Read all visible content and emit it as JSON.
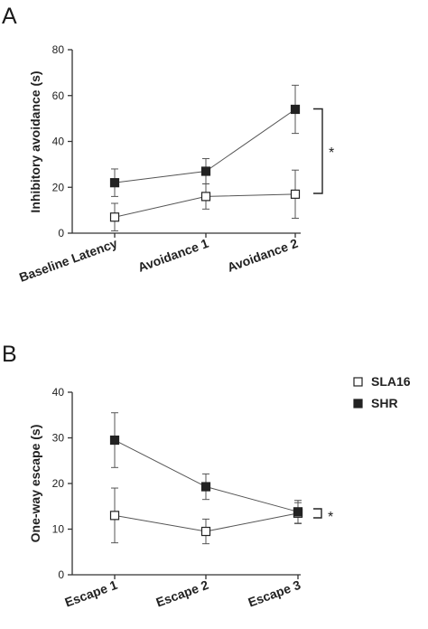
{
  "legend": {
    "items": [
      {
        "label": "SLA16",
        "marker": "open-square",
        "color": "#ffffff"
      },
      {
        "label": "SHR",
        "marker": "filled-square",
        "color": "#222222"
      }
    ]
  },
  "chart_data": [
    {
      "panel": "A",
      "type": "line",
      "categories": [
        "Baseline Latency",
        "Avoidance 1",
        "Avoidance 2"
      ],
      "ylabel": "Inhibitory  avoidance (s)",
      "ylim": [
        0,
        80
      ],
      "yticks": [
        0,
        20,
        40,
        60,
        80
      ],
      "grid": false,
      "significance": "*",
      "series": [
        {
          "name": "SLA16",
          "marker": "open-square",
          "values": [
            7,
            16,
            17
          ],
          "err": [
            6,
            5.5,
            10.5
          ]
        },
        {
          "name": "SHR",
          "marker": "filled-square",
          "values": [
            22,
            27,
            54
          ],
          "err": [
            6,
            5.5,
            10.5
          ]
        }
      ]
    },
    {
      "panel": "B",
      "type": "line",
      "categories": [
        "Escape 1",
        "Escape 2",
        "Escape 3"
      ],
      "ylabel": "One-way escape (s)",
      "ylim": [
        0,
        40
      ],
      "yticks": [
        0,
        10,
        20,
        30,
        40
      ],
      "grid": false,
      "significance": "*",
      "series": [
        {
          "name": "SLA16",
          "marker": "open-square",
          "values": [
            13,
            9.5,
            13.5
          ],
          "err": [
            6,
            2.7,
            2.3
          ]
        },
        {
          "name": "SHR",
          "marker": "filled-square",
          "values": [
            29.5,
            19.3,
            13.8
          ],
          "err": [
            6,
            2.8,
            2.5
          ]
        }
      ]
    }
  ]
}
